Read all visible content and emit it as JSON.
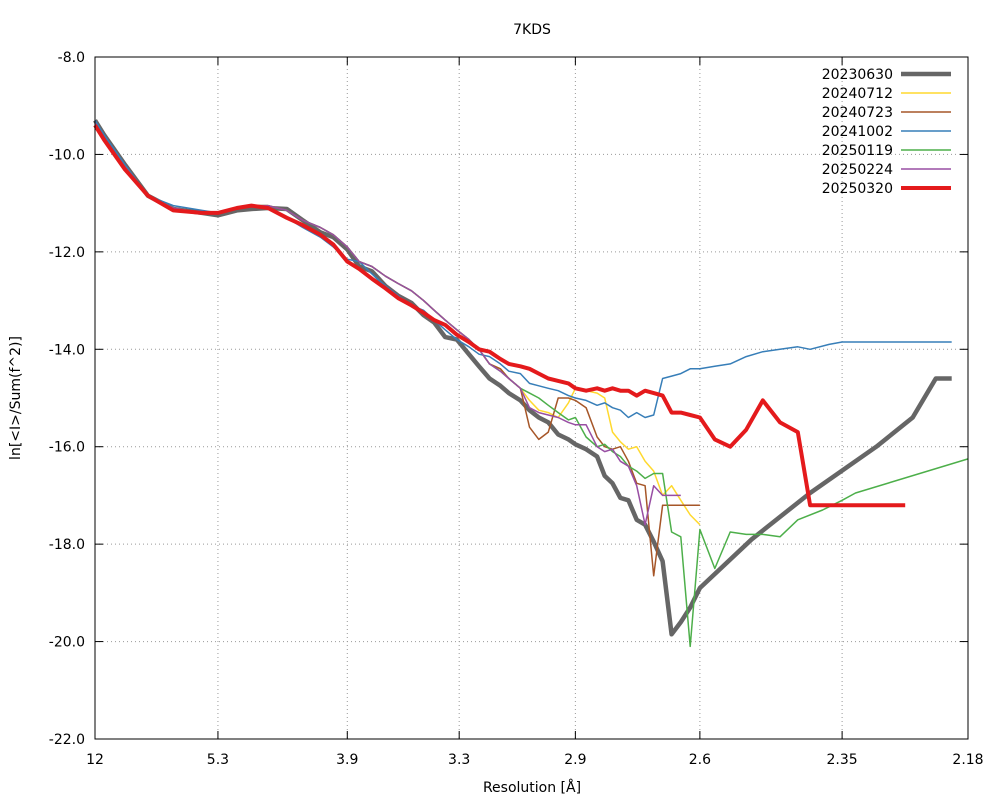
{
  "chart_data": {
    "type": "line",
    "title": "7KDS",
    "xlabel": "Resolution [Å]",
    "ylabel": "ln[<I>/Sum(f^2)]",
    "ylim": [
      -22.0,
      -8.0
    ],
    "y_ticks": [
      "-22.0",
      "-20.0",
      "-18.0",
      "-16.0",
      "-14.0",
      "-12.0",
      "-10.0",
      "-8.0"
    ],
    "x_axis": "reciprocal-squared resolution (1/d^2)",
    "x_ticks": [
      "12",
      "5.3",
      "3.9",
      "3.3",
      "2.9",
      "2.6",
      "2.35",
      "2.18"
    ],
    "grid": true,
    "legend_position": "top-right",
    "series": [
      {
        "name": "20230630",
        "color": "#666666",
        "width": 4.5,
        "x": [
          12,
          10.5,
          8.5,
          7.2,
          6.3,
          5.6,
          5.3,
          5.0,
          4.8,
          4.6,
          4.4,
          4.25,
          4.1,
          4.0,
          3.9,
          3.82,
          3.74,
          3.66,
          3.59,
          3.52,
          3.46,
          3.41,
          3.36,
          3.31,
          3.26,
          3.22,
          3.18,
          3.14,
          3.11,
          3.07,
          3.04,
          3.01,
          2.98,
          2.95,
          2.92,
          2.9,
          2.87,
          2.84,
          2.82,
          2.8,
          2.78,
          2.76,
          2.74,
          2.72,
          2.7,
          2.68,
          2.66,
          2.64,
          2.62,
          2.6,
          2.5,
          2.4,
          2.3,
          2.25,
          2.22,
          2.2
        ],
        "y": [
          -9.3,
          -9.6,
          -10.2,
          -10.85,
          -11.12,
          -11.2,
          -11.25,
          -11.15,
          -11.12,
          -11.1,
          -11.12,
          -11.35,
          -11.6,
          -11.7,
          -11.95,
          -12.3,
          -12.4,
          -12.7,
          -12.9,
          -13.05,
          -13.3,
          -13.45,
          -13.75,
          -13.8,
          -14.1,
          -14.35,
          -14.6,
          -14.75,
          -14.9,
          -15.05,
          -15.25,
          -15.4,
          -15.5,
          -15.75,
          -15.85,
          -15.95,
          -16.05,
          -16.2,
          -16.6,
          -16.75,
          -17.05,
          -17.1,
          -17.5,
          -17.6,
          -17.95,
          -18.35,
          -19.85,
          -19.6,
          -19.3,
          -18.9,
          -17.9,
          -16.95,
          -16.0,
          -15.4,
          -14.6,
          -14.6
        ]
      },
      {
        "name": "20240712",
        "color": "#FFD92F",
        "width": 1.5,
        "x": [
          12,
          10.5,
          8.5,
          7.2,
          6.3,
          5.6,
          5.3,
          5.0,
          4.8,
          4.6,
          4.4,
          4.25,
          4.1,
          4.0,
          3.9,
          3.82,
          3.74,
          3.66,
          3.59,
          3.52,
          3.46,
          3.41,
          3.36,
          3.31,
          3.26,
          3.22,
          3.18,
          3.14,
          3.11,
          3.07,
          3.04,
          3.01,
          2.98,
          2.95,
          2.92,
          2.9,
          2.87,
          2.84,
          2.82,
          2.8,
          2.78,
          2.76,
          2.74,
          2.72,
          2.7,
          2.68,
          2.66,
          2.64,
          2.62,
          2.6
        ],
        "y": [
          -9.35,
          -9.7,
          -10.25,
          -10.85,
          -11.1,
          -11.2,
          -11.2,
          -11.1,
          -11.05,
          -11.05,
          -11.15,
          -11.35,
          -11.5,
          -11.65,
          -11.9,
          -12.2,
          -12.3,
          -12.5,
          -12.65,
          -12.8,
          -13.0,
          -13.2,
          -13.4,
          -13.6,
          -13.8,
          -14.0,
          -14.3,
          -14.4,
          -14.6,
          -14.8,
          -15.05,
          -15.25,
          -15.3,
          -15.4,
          -15.1,
          -14.8,
          -14.85,
          -14.9,
          -15.0,
          -15.7,
          -15.9,
          -16.05,
          -16.0,
          -16.3,
          -16.5,
          -17.0,
          -16.8,
          -17.1,
          -17.4,
          -17.6
        ]
      },
      {
        "name": "20240723",
        "color": "#A65628",
        "width": 1.5,
        "x": [
          12,
          10.5,
          8.5,
          7.2,
          6.3,
          5.6,
          5.3,
          5.0,
          4.8,
          4.6,
          4.4,
          4.25,
          4.1,
          4.0,
          3.9,
          3.82,
          3.74,
          3.66,
          3.59,
          3.52,
          3.46,
          3.41,
          3.36,
          3.31,
          3.26,
          3.22,
          3.18,
          3.14,
          3.11,
          3.07,
          3.04,
          3.01,
          2.98,
          2.95,
          2.92,
          2.9,
          2.87,
          2.84,
          2.82,
          2.8,
          2.78,
          2.76,
          2.74,
          2.72,
          2.7,
          2.68,
          2.66,
          2.64,
          2.62,
          2.6
        ],
        "y": [
          -9.35,
          -9.7,
          -10.25,
          -10.85,
          -11.1,
          -11.2,
          -11.2,
          -11.1,
          -11.05,
          -11.05,
          -11.15,
          -11.35,
          -11.5,
          -11.65,
          -11.9,
          -12.2,
          -12.3,
          -12.5,
          -12.65,
          -12.8,
          -13.0,
          -13.2,
          -13.4,
          -13.6,
          -13.8,
          -14.0,
          -14.3,
          -14.4,
          -14.6,
          -14.8,
          -15.6,
          -15.85,
          -15.7,
          -15.0,
          -15.0,
          -15.05,
          -15.2,
          -15.8,
          -16.0,
          -16.05,
          -16.0,
          -16.3,
          -16.75,
          -16.8,
          -18.65,
          -17.2,
          -17.2,
          -17.2,
          -17.2,
          -17.2
        ]
      },
      {
        "name": "20241002",
        "color": "#377EB8",
        "width": 1.5,
        "x": [
          12,
          10.5,
          8.5,
          7.2,
          6.3,
          5.6,
          5.3,
          5.0,
          4.8,
          4.6,
          4.4,
          4.25,
          4.1,
          4.0,
          3.9,
          3.82,
          3.74,
          3.66,
          3.59,
          3.52,
          3.46,
          3.41,
          3.36,
          3.31,
          3.26,
          3.22,
          3.18,
          3.14,
          3.11,
          3.07,
          3.04,
          3.01,
          2.98,
          2.95,
          2.92,
          2.9,
          2.87,
          2.84,
          2.82,
          2.8,
          2.78,
          2.76,
          2.74,
          2.72,
          2.7,
          2.68,
          2.66,
          2.64,
          2.62,
          2.6,
          2.57,
          2.54,
          2.51,
          2.48,
          2.45,
          2.42,
          2.4,
          2.37,
          2.35,
          2.33,
          2.31,
          2.29,
          2.27,
          2.25,
          2.23,
          2.21,
          2.2
        ],
        "y": [
          -9.3,
          -9.6,
          -10.2,
          -10.85,
          -11.05,
          -11.15,
          -11.2,
          -11.1,
          -11.05,
          -11.1,
          -11.3,
          -11.5,
          -11.7,
          -11.9,
          -12.15,
          -12.2,
          -12.45,
          -12.7,
          -12.9,
          -13.1,
          -13.2,
          -13.4,
          -13.6,
          -13.8,
          -13.95,
          -14.1,
          -14.15,
          -14.3,
          -14.45,
          -14.5,
          -14.7,
          -14.75,
          -14.8,
          -14.85,
          -14.95,
          -15.0,
          -15.05,
          -15.15,
          -15.1,
          -15.2,
          -15.25,
          -15.4,
          -15.3,
          -15.4,
          -15.35,
          -14.6,
          -14.55,
          -14.5,
          -14.4,
          -14.4,
          -14.35,
          -14.3,
          -14.15,
          -14.05,
          -14.0,
          -13.95,
          -14.0,
          -13.9,
          -13.85,
          -13.85,
          -13.85,
          -13.85,
          -13.85,
          -13.85,
          -13.85,
          -13.85,
          -13.85
        ]
      },
      {
        "name": "20250119",
        "color": "#4DAF4A",
        "width": 1.5,
        "x": [
          12,
          10.5,
          8.5,
          7.2,
          6.3,
          5.6,
          5.3,
          5.0,
          4.8,
          4.6,
          4.4,
          4.25,
          4.1,
          4.0,
          3.9,
          3.82,
          3.74,
          3.66,
          3.59,
          3.52,
          3.46,
          3.41,
          3.36,
          3.31,
          3.26,
          3.22,
          3.18,
          3.14,
          3.11,
          3.07,
          3.04,
          3.01,
          2.98,
          2.95,
          2.92,
          2.9,
          2.87,
          2.84,
          2.82,
          2.8,
          2.78,
          2.76,
          2.74,
          2.72,
          2.7,
          2.68,
          2.66,
          2.64,
          2.62,
          2.6,
          2.57,
          2.54,
          2.51,
          2.48,
          2.45,
          2.42,
          2.38,
          2.35,
          2.33,
          2.18
        ],
        "y": [
          -9.35,
          -9.7,
          -10.25,
          -10.85,
          -11.1,
          -11.2,
          -11.2,
          -11.1,
          -11.05,
          -11.05,
          -11.15,
          -11.35,
          -11.5,
          -11.65,
          -11.9,
          -12.2,
          -12.3,
          -12.5,
          -12.65,
          -12.8,
          -13.0,
          -13.2,
          -13.4,
          -13.6,
          -13.8,
          -14.0,
          -14.3,
          -14.45,
          -14.6,
          -14.8,
          -14.9,
          -15.0,
          -15.15,
          -15.3,
          -15.45,
          -15.4,
          -15.8,
          -16.0,
          -15.95,
          -16.1,
          -16.2,
          -16.4,
          -16.5,
          -16.65,
          -16.55,
          -16.55,
          -17.75,
          -17.85,
          -20.1,
          -17.7,
          -18.5,
          -17.75,
          -17.8,
          -17.8,
          -17.85,
          -17.5,
          -17.3,
          -17.1,
          -16.95,
          -16.25
        ]
      },
      {
        "name": "20250224",
        "color": "#984EA3",
        "width": 1.5,
        "x": [
          12,
          10.5,
          8.5,
          7.2,
          6.3,
          5.6,
          5.3,
          5.0,
          4.8,
          4.6,
          4.4,
          4.25,
          4.1,
          4.0,
          3.9,
          3.82,
          3.74,
          3.66,
          3.59,
          3.52,
          3.46,
          3.41,
          3.36,
          3.31,
          3.26,
          3.22,
          3.18,
          3.14,
          3.11,
          3.07,
          3.04,
          3.01,
          2.98,
          2.95,
          2.92,
          2.9,
          2.87,
          2.84,
          2.82,
          2.8,
          2.78,
          2.76,
          2.74,
          2.72,
          2.7,
          2.68,
          2.66,
          2.64
        ],
        "y": [
          -9.35,
          -9.7,
          -10.25,
          -10.85,
          -11.1,
          -11.2,
          -11.2,
          -11.1,
          -11.05,
          -11.05,
          -11.15,
          -11.35,
          -11.5,
          -11.65,
          -11.9,
          -12.2,
          -12.3,
          -12.5,
          -12.65,
          -12.8,
          -13.0,
          -13.2,
          -13.4,
          -13.6,
          -13.8,
          -14.0,
          -14.3,
          -14.45,
          -14.6,
          -14.8,
          -15.2,
          -15.3,
          -15.35,
          -15.4,
          -15.5,
          -15.55,
          -15.55,
          -16.0,
          -16.1,
          -16.05,
          -16.3,
          -16.4,
          -16.8,
          -17.6,
          -16.8,
          -17.0,
          -17.0,
          -17.0
        ]
      },
      {
        "name": "20250320",
        "color": "#E41A1C",
        "width": 4,
        "x": [
          12,
          10.5,
          8.5,
          7.2,
          6.3,
          5.6,
          5.3,
          5.0,
          4.8,
          4.6,
          4.4,
          4.25,
          4.1,
          4.0,
          3.9,
          3.82,
          3.74,
          3.66,
          3.59,
          3.52,
          3.46,
          3.41,
          3.36,
          3.31,
          3.26,
          3.22,
          3.18,
          3.14,
          3.11,
          3.07,
          3.04,
          3.01,
          2.98,
          2.95,
          2.92,
          2.9,
          2.87,
          2.84,
          2.82,
          2.8,
          2.78,
          2.76,
          2.74,
          2.72,
          2.7,
          2.68,
          2.66,
          2.64,
          2.62,
          2.6,
          2.57,
          2.54,
          2.51,
          2.48,
          2.45,
          2.42,
          2.4,
          2.38,
          2.36,
          2.34,
          2.32,
          2.3,
          2.28,
          2.26
        ],
        "y": [
          -9.4,
          -9.7,
          -10.3,
          -10.85,
          -11.15,
          -11.2,
          -11.2,
          -11.1,
          -11.05,
          -11.1,
          -11.3,
          -11.45,
          -11.65,
          -11.85,
          -12.2,
          -12.35,
          -12.55,
          -12.75,
          -12.95,
          -13.1,
          -13.25,
          -13.4,
          -13.5,
          -13.7,
          -13.85,
          -14.0,
          -14.05,
          -14.2,
          -14.3,
          -14.35,
          -14.4,
          -14.5,
          -14.6,
          -14.65,
          -14.7,
          -14.8,
          -14.85,
          -14.8,
          -14.85,
          -14.8,
          -14.85,
          -14.85,
          -14.95,
          -14.85,
          -14.9,
          -14.95,
          -15.3,
          -15.3,
          -15.35,
          -15.4,
          -15.85,
          -16.0,
          -15.65,
          -15.05,
          -15.5,
          -15.7,
          -17.2,
          -17.2,
          -17.2,
          -17.2,
          -17.2,
          -17.2,
          -17.2,
          -17.2
        ]
      }
    ]
  }
}
